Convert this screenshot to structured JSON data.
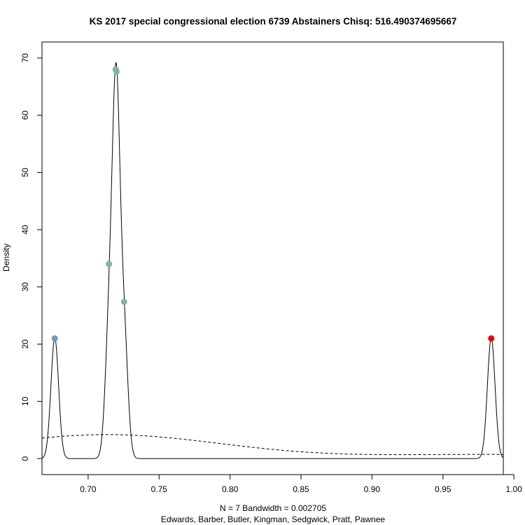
{
  "chart_data": {
    "type": "line",
    "title": "KS 2017 special congressional election 6739 Abstainers Chisq: 516.490374695667",
    "xlabel": "N = 7   Bandwidth = 0.002705",
    "xlabel2": "Edwards, Barber, Butler, Kingman, Sedgwick, Pratt, Pawnee",
    "ylabel": "Density",
    "xlim": [
      0.6675,
      0.9925
    ],
    "ylim": [
      0,
      70
    ],
    "x_ticks": [
      0.7,
      0.75,
      0.8,
      0.85,
      0.9,
      0.95,
      1.0
    ],
    "x_tick_labels": [
      "0.70",
      "0.75",
      "0.80",
      "0.85",
      "0.90",
      "0.95",
      "1.00"
    ],
    "y_ticks": [
      0,
      10,
      20,
      30,
      40,
      50,
      60,
      70
    ],
    "y_tick_labels": [
      "0",
      "10",
      "20",
      "30",
      "40",
      "50",
      "60",
      "70"
    ],
    "bandwidth": 0.002705,
    "n": 7,
    "series": [
      {
        "kind": "kde-solid",
        "samples": [
          0.6765,
          0.7147,
          0.7194,
          0.7198,
          0.72,
          0.7253,
          0.984
        ]
      },
      {
        "kind": "kde-dashed",
        "samples": [
          0.6765,
          0.7147,
          0.7194,
          0.7198,
          0.72,
          0.7253,
          0.984
        ],
        "bandwidth": 0.08
      }
    ],
    "points": [
      {
        "x": 0.6765,
        "y": 21.0,
        "color": "#6a9ebb"
      },
      {
        "x": 0.7147,
        "y": 34.0,
        "color": "#7fb5a0"
      },
      {
        "x": 0.7194,
        "y": 68.0,
        "color": "#7fb5a0"
      },
      {
        "x": 0.72,
        "y": 67.6,
        "color": "#7fb5a0"
      },
      {
        "x": 0.7253,
        "y": 27.4,
        "color": "#7fb5a0"
      },
      {
        "x": 0.984,
        "y": 21.0,
        "color": "#ee0000"
      }
    ],
    "grid": false,
    "legend": "none"
  }
}
